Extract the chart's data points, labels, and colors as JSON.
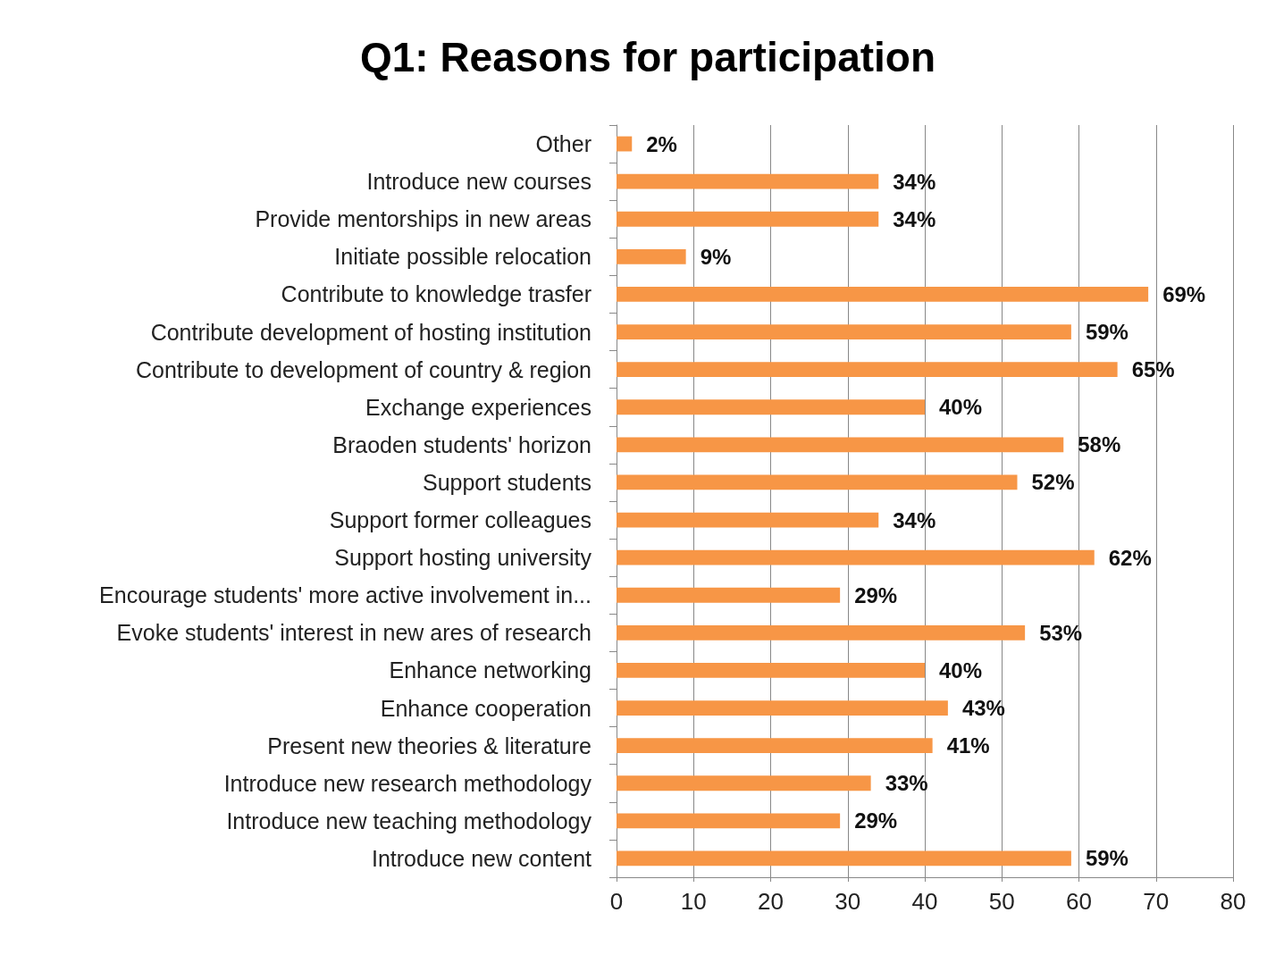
{
  "chart_data": {
    "type": "bar",
    "orientation": "horizontal",
    "title": "Q1: Reasons for participation",
    "categories": [
      "Other",
      "Introduce new courses",
      "Provide mentorships in new areas",
      "Initiate possible relocation",
      "Contribute to knowledge trasfer",
      "Contribute development of hosting institution",
      "Contribute to development of country & region",
      "Exchange experiences",
      "Braoden students' horizon",
      "Support students",
      "Support former colleagues",
      "Support hosting university",
      "Encourage students' more active involvement in...",
      "Evoke students' interest in new ares of research",
      "Enhance networking",
      "Enhance cooperation",
      "Present new theories & literature",
      "Introduce new research methodology",
      "Introduce new teaching methodology",
      "Introduce new content"
    ],
    "values": [
      2,
      34,
      34,
      9,
      69,
      59,
      65,
      40,
      58,
      52,
      34,
      62,
      29,
      53,
      40,
      43,
      41,
      33,
      29,
      59
    ],
    "value_labels": [
      "2%",
      "34%",
      "34%",
      "9%",
      "69%",
      "59%",
      "65%",
      "40%",
      "58%",
      "52%",
      "34%",
      "62%",
      "29%",
      "53%",
      "40%",
      "43%",
      "41%",
      "33%",
      "29%",
      "59%"
    ],
    "color": "#f79646",
    "xlim": [
      0,
      80
    ],
    "xticks": [
      0,
      10,
      20,
      30,
      40,
      50,
      60,
      70,
      80
    ],
    "grid": "x"
  }
}
